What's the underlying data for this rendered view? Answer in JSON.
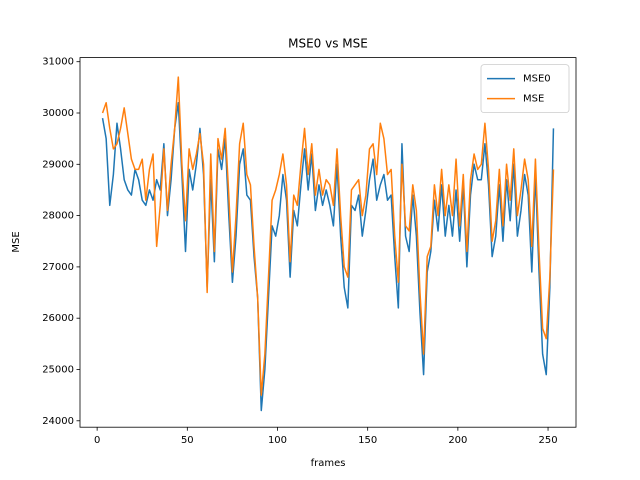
{
  "chart_data": {
    "type": "line",
    "title": "MSE0 vs MSE",
    "xlabel": "frames",
    "ylabel": "MSE",
    "x": [
      3,
      5,
      7,
      9,
      11,
      13,
      15,
      17,
      19,
      21,
      23,
      25,
      27,
      29,
      31,
      33,
      35,
      37,
      39,
      41,
      43,
      45,
      47,
      49,
      51,
      53,
      55,
      57,
      59,
      61,
      63,
      65,
      67,
      69,
      71,
      73,
      75,
      77,
      79,
      81,
      83,
      85,
      87,
      89,
      91,
      93,
      95,
      97,
      99,
      101,
      103,
      105,
      107,
      109,
      111,
      113,
      115,
      117,
      119,
      121,
      123,
      125,
      127,
      129,
      131,
      133,
      135,
      137,
      139,
      141,
      143,
      145,
      147,
      149,
      151,
      153,
      155,
      157,
      159,
      161,
      163,
      165,
      167,
      169,
      171,
      173,
      175,
      177,
      179,
      181,
      183,
      185,
      187,
      189,
      191,
      193,
      195,
      197,
      199,
      201,
      203,
      205,
      207,
      209,
      211,
      213,
      215,
      217,
      219,
      221,
      223,
      225,
      227,
      229,
      231,
      233,
      235,
      237,
      239,
      241,
      243,
      245,
      247,
      249,
      251,
      253
    ],
    "series": [
      {
        "name": "MSE0",
        "color": "#1f77b4",
        "values": [
          29900,
          29500,
          28200,
          28800,
          29800,
          29300,
          28700,
          28500,
          28400,
          28900,
          28700,
          28300,
          28200,
          28500,
          28300,
          28700,
          28500,
          29400,
          28000,
          28700,
          29700,
          30200,
          28800,
          27300,
          28900,
          28500,
          29000,
          29700,
          28800,
          26600,
          28700,
          27100,
          29300,
          28900,
          29500,
          28000,
          26700,
          27600,
          29000,
          29300,
          28400,
          28300,
          27200,
          26400,
          24200,
          25000,
          26400,
          27800,
          27600,
          28000,
          28800,
          28300,
          26800,
          28100,
          27800,
          28600,
          29300,
          28500,
          29200,
          28100,
          28600,
          28200,
          28500,
          28200,
          27800,
          29000,
          27600,
          26600,
          26200,
          28200,
          28100,
          28400,
          27600,
          28100,
          28700,
          29100,
          28300,
          28600,
          28800,
          28300,
          28400,
          27200,
          26200,
          29400,
          27600,
          27300,
          28400,
          27600,
          26100,
          24900,
          26900,
          27300,
          28300,
          27700,
          28600,
          27600,
          28200,
          27600,
          28500,
          27500,
          28600,
          27000,
          28400,
          29000,
          28700,
          28700,
          29400,
          28600,
          27200,
          27600,
          28600,
          27500,
          28700,
          27900,
          29000,
          27600,
          28100,
          28800,
          28400,
          26900,
          28800,
          26900,
          25300,
          24900,
          26600,
          29700
        ]
      },
      {
        "name": "MSE",
        "color": "#ff7f0e",
        "values": [
          30000,
          30200,
          29700,
          29300,
          29400,
          29700,
          30100,
          29600,
          29100,
          28900,
          28900,
          29100,
          28300,
          28900,
          29200,
          27400,
          28200,
          29300,
          28100,
          29000,
          29700,
          30700,
          29000,
          27900,
          29300,
          28900,
          29200,
          29600,
          29000,
          26500,
          29200,
          27300,
          29500,
          29100,
          29700,
          28400,
          26900,
          28000,
          29400,
          29800,
          28800,
          28600,
          27400,
          26400,
          24500,
          25300,
          26800,
          28300,
          28500,
          28800,
          29200,
          28600,
          27100,
          28400,
          28200,
          29000,
          29700,
          28800,
          29400,
          28400,
          28900,
          28400,
          28700,
          28600,
          28200,
          29300,
          28000,
          27000,
          26800,
          28500,
          28600,
          28700,
          28000,
          28400,
          29300,
          29400,
          28800,
          29800,
          29500,
          28800,
          28900,
          27600,
          26700,
          29000,
          27800,
          27700,
          28600,
          28100,
          26500,
          25300,
          27200,
          27400,
          28600,
          28000,
          28900,
          28000,
          28600,
          28000,
          29100,
          27800,
          28800,
          27300,
          28700,
          29200,
          28900,
          29000,
          29800,
          28900,
          27500,
          27900,
          28900,
          27800,
          29000,
          28300,
          29300,
          28000,
          28500,
          29100,
          28700,
          27400,
          29100,
          27300,
          25800,
          25600,
          26800,
          28900
        ]
      }
    ],
    "xlim": [
      -9.5,
      265.5
    ],
    "ylim": [
      23875,
      31080
    ],
    "xticks": [
      0,
      50,
      100,
      150,
      200,
      250
    ],
    "yticks": [
      24000,
      25000,
      26000,
      27000,
      28000,
      29000,
      30000,
      31000
    ],
    "legend": "upper right"
  }
}
